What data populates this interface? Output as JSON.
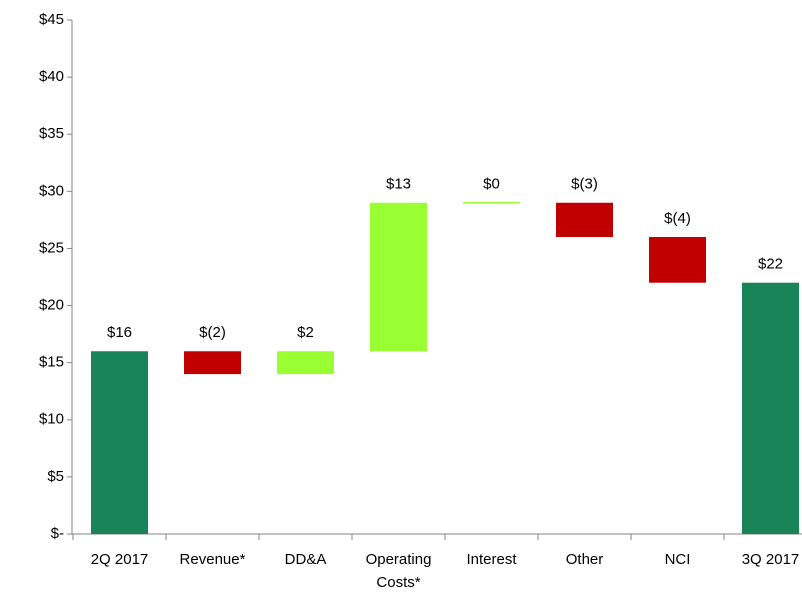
{
  "chart_data": {
    "type": "waterfall",
    "categories": [
      "2Q 2017",
      "Revenue*",
      "DD&A",
      "Operating\nCosts*",
      "Interest",
      "Other",
      "NCI",
      "3Q 2017"
    ],
    "values": [
      16,
      -2,
      2,
      13,
      0,
      -3,
      -4,
      22
    ],
    "value_labels": [
      "$16",
      "$(2)",
      "$2",
      "$13",
      "$0",
      "$(3)",
      "$(4)",
      "$22"
    ],
    "measure": [
      "total",
      "relative",
      "relative",
      "relative",
      "relative",
      "relative",
      "relative",
      "total"
    ],
    "colors": {
      "total": "#1a8459",
      "increase": "#99ff33",
      "decrease": "#c00000"
    },
    "ylim": [
      0,
      45
    ],
    "yticks": [
      {
        "value": 0,
        "label": "$-"
      },
      {
        "value": 5,
        "label": "$5"
      },
      {
        "value": 10,
        "label": "$10"
      },
      {
        "value": 15,
        "label": "$15"
      },
      {
        "value": 20,
        "label": "$20"
      },
      {
        "value": 25,
        "label": "$25"
      },
      {
        "value": 30,
        "label": "$30"
      },
      {
        "value": 35,
        "label": "$35"
      },
      {
        "value": 40,
        "label": "$40"
      },
      {
        "value": 45,
        "label": "$45"
      }
    ],
    "grid": false
  }
}
